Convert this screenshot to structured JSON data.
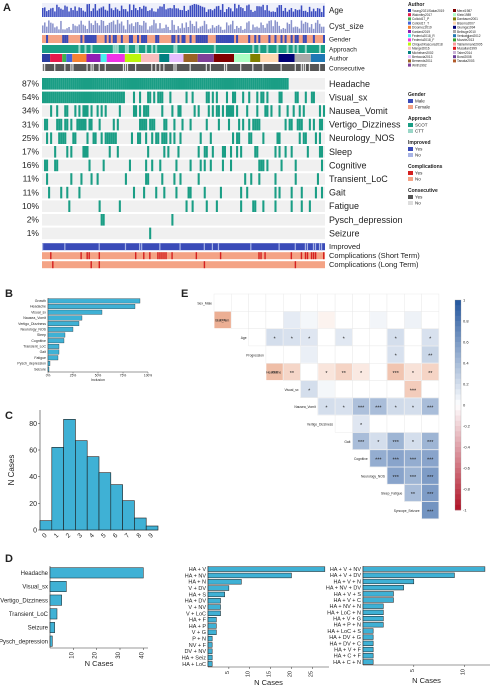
{
  "panels": {
    "A": "A",
    "B": "B",
    "C": "C",
    "D": "D",
    "E": "E"
  },
  "colors": {
    "teal": "#1a9e85",
    "track_bg": "#f0f0f0",
    "bar_blue": "#3fb1d5",
    "bar_edge": "#1b1b1b",
    "gender_male": "#3a4bb8",
    "gender_female": "#f4a385",
    "approach_scot": "#1a9e85",
    "approach_ctt": "#9ad7c8",
    "improved_yes": "#3a4bb8",
    "improved_no": "#a8b4e6",
    "comp_yes": "#d42020",
    "comp_no": "#f4a385",
    "consec_yes": "#555555",
    "consec_no": "#dddddd",
    "corr_pos": "#1f4e91",
    "corr_neg": "#b1182b"
  },
  "chart_data": [
    {
      "type": "heatmap",
      "panel": "A",
      "top_tracks": [
        "Age",
        "Cyst_size",
        "Gender",
        "Approach",
        "Author",
        "Consecutive"
      ],
      "rows": [
        {
          "label": "Headache",
          "pct": "87%"
        },
        {
          "label": "Visual_sx",
          "pct": "54%"
        },
        {
          "label": "Nausea_Vomit",
          "pct": "34%"
        },
        {
          "label": "Vertigo_Dizziness",
          "pct": "31%"
        },
        {
          "label": "Neurology_NOS",
          "pct": "25%"
        },
        {
          "label": "Sleep",
          "pct": "17%"
        },
        {
          "label": "Cognitive",
          "pct": "16%"
        },
        {
          "label": "Transient_LoC",
          "pct": "11%"
        },
        {
          "label": "Gait",
          "pct": "11%"
        },
        {
          "label": "Fatigue",
          "pct": "10%"
        },
        {
          "label": "Pysch_depression",
          "pct": "2%"
        },
        {
          "label": "Seizure",
          "pct": "1%"
        }
      ],
      "bottom_tracks": [
        "Improved",
        "Complications (Short Term)",
        "Complications (Long Term)"
      ],
      "legend": {
        "author_title": "Author",
        "authors": [
          "Young2021/Sakar2019",
          "Walcnitry2017",
          "Colloid17_P",
          "Colloid17_T",
          "DGomez2019",
          "Kanlard2019",
          "Fedeniu2018_R",
          "Fedeniu2018_F",
          "Chiquet/Kascura2018",
          "Mangel2016",
          "Michelsen2002",
          "Bertoccia2013",
          "Bemends2011",
          "Wirth1992",
          "Merzi1987",
          "Klein1989",
          "Danbaum2001",
          "Bisomo2007",
          "Giumga1994",
          "Belbuge2010",
          "Venkatgjani2012",
          "Mozzie2013",
          "Tablemmand2005",
          "Musallan1999",
          "Taher2014",
          "Bond2008",
          "Tanaka2003"
        ],
        "author_colors": [
          "#2b3ea0",
          "#e6194b",
          "#3cb44b",
          "#4363d8",
          "#f58231",
          "#911eb4",
          "#46f0f0",
          "#f032e6",
          "#bcf60c",
          "#fabebe",
          "#008080",
          "#e6beff",
          "#9a6324",
          "#7f3f98",
          "#800000",
          "#aaffc3",
          "#808000",
          "#ffd8b1",
          "#000075",
          "#a9a9a9",
          "#1f78b4",
          "#33a02c",
          "#fb9a99",
          "#e31a1c",
          "#cab2d6",
          "#6a3d9a",
          "#b15928"
        ],
        "groups": [
          {
            "title": "Gender",
            "items": [
              {
                "label": "Male",
                "color": "#3a4bb8"
              },
              {
                "label": "Female",
                "color": "#f4a385"
              }
            ]
          },
          {
            "title": "Approach",
            "items": [
              {
                "label": "SCOT",
                "color": "#1a9e85"
              },
              {
                "label": "CTT",
                "color": "#9ad7c8"
              }
            ]
          },
          {
            "title": "Improved",
            "items": [
              {
                "label": "Yes",
                "color": "#3a4bb8"
              },
              {
                "label": "No",
                "color": "#a8b4e6"
              }
            ]
          },
          {
            "title": "Complications",
            "items": [
              {
                "label": "Yes",
                "color": "#d42020"
              },
              {
                "label": "No",
                "color": "#f4a385"
              }
            ]
          },
          {
            "title": "Consecutive",
            "items": [
              {
                "label": "Yes",
                "color": "#555555"
              },
              {
                "label": "No",
                "color": "#dddddd"
              }
            ]
          }
        ]
      }
    },
    {
      "type": "bar",
      "panel": "B",
      "orientation": "horizontal",
      "categories": [
        "Growth",
        "Headache",
        "Visual_sx",
        "Nausea_Vomit",
        "Vertigo_Dizziness",
        "Neurology_NOS",
        "Sleep",
        "Cognitive",
        "Transient_LoC",
        "Gait",
        "Fatigue",
        "Pysch_depression",
        "Seizure"
      ],
      "values": [
        0.92,
        0.87,
        0.54,
        0.34,
        0.31,
        0.25,
        0.17,
        0.16,
        0.11,
        0.11,
        0.1,
        0.02,
        0.01
      ],
      "xlabel": "Inclusion",
      "xticks": [
        "0%",
        "25%",
        "50%",
        "75%",
        "100%"
      ],
      "xlim": [
        0,
        1
      ]
    },
    {
      "type": "bar",
      "panel": "C",
      "categories": [
        "0",
        "1",
        "2",
        "3",
        "4",
        "5",
        "6",
        "7",
        "8",
        "9"
      ],
      "values": [
        7,
        62,
        83,
        67,
        55,
        43,
        34,
        22,
        9,
        3
      ],
      "ylabel": "N Cases",
      "yticks": [
        "0",
        "20",
        "40",
        "60",
        "80"
      ],
      "ylim": [
        0,
        90
      ]
    },
    {
      "type": "bar",
      "panel": "D1",
      "orientation": "horizontal",
      "categories": [
        "Headache",
        "Visual_sx",
        "Vertigo_Dizziness",
        "Transient_LoC",
        "Seizure",
        "Pysch_depression"
      ],
      "values": [
        40,
        7,
        5,
        3,
        2,
        1
      ],
      "xlabel": "N Cases",
      "xticks": [
        "10",
        "20",
        "30",
        "40"
      ],
      "xlim": [
        0,
        42
      ]
    },
    {
      "type": "bar",
      "panel": "D2",
      "orientation": "horizontal",
      "categories": [
        "HA + V",
        "HA + NV",
        "HA + N",
        "V + DV",
        "HA + S",
        "HA + DV",
        "V + NV",
        "V + LoC",
        "HA + F",
        "HA + P",
        "V + G",
        "P + N",
        "NV + F",
        "DV + NV",
        "HA + Seiz",
        "HA + LoC"
      ],
      "values": [
        28,
        20,
        8,
        5,
        4,
        3,
        3,
        3,
        2,
        2,
        2,
        1,
        1,
        1,
        1,
        1
      ],
      "xlabel": "N Cases",
      "xticks": [
        "5",
        "10",
        "15",
        "20",
        "25"
      ],
      "xlim": [
        0,
        29
      ]
    },
    {
      "type": "bar",
      "panel": "D3",
      "orientation": "horizontal",
      "categories": [
        "HA + V + NV",
        "HA + V + DV",
        "HA + V + N",
        "HA + NV + DV",
        "HA + V + S",
        "HA + V + C",
        "HA + NV + N",
        "HA + LoC + N",
        "HA + V + G",
        "HA + P + N",
        "HA + LoC + S",
        "HA + DV + G",
        "HA + DV + C",
        "HA + V + F",
        "HA + C + F",
        "HA + C + N"
      ],
      "values": [
        12,
        9,
        5,
        4,
        3,
        3,
        2,
        2,
        2,
        2,
        1,
        1,
        1,
        1,
        1,
        1
      ],
      "xlabel": "N Cases",
      "xticks": [
        "5",
        "10"
      ],
      "xlim": [
        0,
        12.5
      ]
    },
    {
      "type": "heatmap",
      "panel": "E",
      "variables": [
        "Sex_Male",
        "Bias_rem",
        "Age",
        "Progression",
        "Headache",
        "Visual_sx",
        "Nausea_Vomit",
        "Vertigo_Dizziness",
        "Gait",
        "Cognitive",
        "Neurology_NOS",
        "Sleep_Fatigue",
        "Syncope_Seizure"
      ],
      "colorbar_ticks": [
        "1",
        "0.8",
        "0.6",
        "0.4",
        "0.2",
        "0",
        "-0.2",
        "-0.4",
        "-0.6",
        "-0.8",
        "-1"
      ],
      "cells": [
        [
          1,
          0,
          "***",
          -0.55
        ],
        [
          1,
          4,
          "",
          0.12
        ],
        [
          1,
          5,
          "",
          0.05
        ],
        [
          1,
          6,
          "",
          -0.08
        ],
        [
          1,
          9,
          "",
          0.06
        ],
        [
          1,
          11,
          "",
          0.08
        ],
        [
          2,
          3,
          "*",
          0.2
        ],
        [
          2,
          4,
          "*",
          0.18
        ],
        [
          2,
          5,
          "*",
          0.15
        ],
        [
          2,
          7,
          "*",
          0.14
        ],
        [
          2,
          10,
          "*",
          0.2
        ],
        [
          2,
          12,
          "*",
          0.18
        ],
        [
          3,
          5,
          "",
          0.1
        ],
        [
          3,
          10,
          "*",
          0.18
        ],
        [
          3,
          12,
          "**",
          0.25
        ],
        [
          4,
          3,
          "***",
          -0.45
        ],
        [
          4,
          4,
          "**",
          -0.28
        ],
        [
          4,
          6,
          "*",
          -0.18
        ],
        [
          4,
          7,
          "**",
          -0.3
        ],
        [
          4,
          8,
          "*",
          -0.15
        ],
        [
          4,
          10,
          "***",
          -0.4
        ],
        [
          4,
          11,
          "*",
          -0.2
        ],
        [
          4,
          12,
          "**",
          -0.3
        ],
        [
          5,
          5,
          "*",
          0.2
        ],
        [
          5,
          6,
          "",
          0.05
        ],
        [
          5,
          11,
          "***",
          -0.35
        ],
        [
          6,
          6,
          "*",
          0.2
        ],
        [
          6,
          7,
          "*",
          0.18
        ],
        [
          6,
          8,
          "***",
          0.38
        ],
        [
          6,
          9,
          "***",
          0.4
        ],
        [
          6,
          10,
          "*",
          0.22
        ],
        [
          6,
          11,
          "*",
          0.2
        ],
        [
          6,
          12,
          "***",
          0.4
        ],
        [
          7,
          8,
          "*",
          0.15
        ],
        [
          8,
          8,
          "***",
          0.4
        ],
        [
          8,
          9,
          "*",
          0.2
        ],
        [
          8,
          10,
          "***",
          0.45
        ],
        [
          8,
          11,
          "*",
          0.2
        ],
        [
          8,
          12,
          "***",
          0.45
        ],
        [
          9,
          9,
          "***",
          0.5
        ],
        [
          9,
          10,
          "***",
          0.55
        ],
        [
          9,
          11,
          "***",
          0.5
        ],
        [
          9,
          12,
          "***",
          0.55
        ],
        [
          10,
          10,
          "***",
          0.55
        ],
        [
          10,
          11,
          "***",
          0.45
        ],
        [
          10,
          12,
          "***",
          0.6
        ],
        [
          11,
          11,
          "**",
          0.4
        ],
        [
          11,
          12,
          "***",
          0.6
        ],
        [
          12,
          12,
          "***",
          0.65
        ]
      ]
    }
  ]
}
